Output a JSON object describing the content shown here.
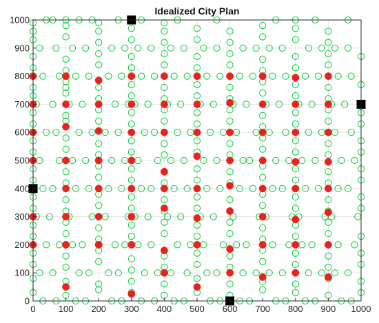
{
  "chart_data": {
    "type": "scatter",
    "title": "Idealized City Plan",
    "xlabel": "",
    "ylabel": "",
    "xlim": [
      0,
      1000
    ],
    "ylim": [
      0,
      1000
    ],
    "xticks": [
      "0",
      "100",
      "200",
      "300",
      "400",
      "500",
      "600",
      "700",
      "800",
      "900",
      "1000"
    ],
    "yticks": [
      "0",
      "100",
      "200",
      "300",
      "400",
      "500",
      "600",
      "700",
      "800",
      "900",
      "1000"
    ],
    "grid": true,
    "colors": {
      "households": "#00cc33",
      "services": "#e8231e",
      "gates": "#000000"
    },
    "series": [
      {
        "marker": "open-circle",
        "x": [
          0,
          0,
          0,
          0,
          0,
          0,
          0,
          0,
          0,
          0,
          0,
          0,
          0,
          0,
          0,
          0,
          0,
          0,
          0,
          0,
          0,
          100,
          100,
          100,
          100,
          100,
          100,
          100,
          100,
          100,
          100,
          100,
          100,
          100,
          100,
          100,
          100,
          100,
          100,
          100,
          100,
          100,
          100,
          200,
          200,
          200,
          200,
          200,
          200,
          200,
          200,
          200,
          200,
          200,
          200,
          200,
          200,
          200,
          200,
          200,
          200,
          200,
          200,
          200,
          300,
          300,
          300,
          300,
          300,
          300,
          300,
          300,
          300,
          300,
          300,
          300,
          300,
          300,
          300,
          300,
          300,
          300,
          300,
          300,
          400,
          400,
          400,
          400,
          400,
          400,
          400,
          400,
          400,
          400,
          400,
          400,
          400,
          400,
          400,
          400,
          400,
          400,
          400,
          400,
          400,
          500,
          500,
          500,
          500,
          500,
          500,
          500,
          500,
          500,
          500,
          500,
          500,
          500,
          500,
          500,
          500,
          500,
          500,
          500,
          500,
          600,
          600,
          600,
          600,
          600,
          600,
          600,
          600,
          600,
          600,
          600,
          600,
          600,
          600,
          600,
          600,
          600,
          600,
          600,
          600,
          700,
          700,
          700,
          700,
          700,
          700,
          700,
          700,
          700,
          700,
          700,
          700,
          700,
          700,
          700,
          700,
          700,
          700,
          700,
          700,
          800,
          800,
          800,
          800,
          800,
          800,
          800,
          800,
          800,
          800,
          800,
          800,
          800,
          800,
          800,
          800,
          800,
          800,
          800,
          800,
          800,
          900,
          900,
          900,
          900,
          900,
          900,
          900,
          900,
          900,
          900,
          900,
          900,
          900,
          900,
          900,
          900,
          900,
          900,
          900,
          900,
          1000,
          1000,
          1000,
          1000,
          1000,
          1000,
          1000,
          1000,
          1000,
          1000,
          1000,
          1000,
          1000,
          1000,
          1000,
          30,
          70,
          130,
          160,
          240,
          270,
          330,
          370,
          430,
          460,
          540,
          570,
          630,
          660,
          740,
          770,
          830,
          860,
          940,
          970,
          20,
          60,
          140,
          170,
          230,
          260,
          340,
          380,
          420,
          470,
          530,
          560,
          640,
          680,
          720,
          760,
          840,
          880,
          920,
          960,
          40,
          80,
          120,
          150,
          250,
          280,
          320,
          360,
          440,
          480,
          520,
          580,
          620,
          650,
          730,
          780,
          820,
          850,
          930,
          980,
          10,
          50,
          110,
          180,
          220,
          290,
          310,
          350,
          410,
          450,
          510,
          550,
          610,
          690,
          710,
          790,
          810,
          890,
          910,
          990,
          30,
          60,
          130,
          170,
          230,
          270,
          330,
          360,
          430,
          470,
          530,
          570,
          630,
          670,
          730,
          760,
          830,
          870,
          930,
          960,
          20,
          80,
          120,
          160,
          240,
          280,
          320,
          380,
          420,
          460,
          520,
          560,
          640,
          660,
          740,
          780,
          820,
          860,
          940,
          980,
          40,
          70,
          140,
          180,
          220,
          260,
          340,
          370,
          440,
          480,
          540,
          580,
          620,
          680,
          720,
          770,
          840,
          880,
          920,
          970,
          10,
          60,
          110,
          150,
          250,
          290,
          310,
          350,
          410,
          450,
          510,
          550,
          610,
          650,
          710,
          750,
          810,
          850,
          910,
          950,
          30,
          80,
          130,
          170,
          230,
          270,
          330,
          370,
          430,
          470,
          530,
          570,
          630,
          670,
          730,
          770,
          830,
          870,
          930,
          970,
          20,
          70,
          120,
          160,
          240,
          280,
          320,
          360,
          420,
          460,
          520,
          560,
          640,
          680,
          720,
          760,
          840,
          880,
          920,
          960,
          40,
          60,
          140,
          180,
          260,
          330,
          440,
          560,
          740,
          860,
          960
        ],
        "y": [
          30,
          80,
          130,
          170,
          230,
          270,
          330,
          370,
          430,
          470,
          530,
          570,
          630,
          670,
          730,
          760,
          830,
          870,
          930,
          960,
          990,
          20,
          70,
          120,
          160,
          240,
          280,
          320,
          360,
          420,
          460,
          540,
          580,
          640,
          660,
          740,
          780,
          820,
          860,
          940,
          980,
          1000,
          760,
          40,
          60,
          140,
          180,
          220,
          260,
          340,
          380,
          440,
          480,
          520,
          560,
          640,
          680,
          720,
          760,
          840,
          880,
          920,
          960,
          990,
          30,
          70,
          110,
          150,
          230,
          270,
          330,
          370,
          430,
          470,
          530,
          570,
          630,
          670,
          730,
          770,
          830,
          870,
          930,
          970,
          20,
          60,
          120,
          160,
          240,
          280,
          320,
          360,
          420,
          460,
          520,
          560,
          640,
          680,
          720,
          760,
          840,
          880,
          920,
          960,
          990,
          30,
          80,
          130,
          170,
          230,
          270,
          330,
          370,
          430,
          470,
          530,
          570,
          630,
          670,
          730,
          770,
          830,
          870,
          930,
          970,
          20,
          60,
          120,
          160,
          240,
          280,
          320,
          360,
          420,
          460,
          520,
          560,
          640,
          680,
          720,
          760,
          840,
          880,
          920,
          960,
          40,
          70,
          140,
          180,
          220,
          260,
          340,
          380,
          440,
          480,
          540,
          580,
          620,
          660,
          740,
          780,
          820,
          860,
          940,
          980,
          30,
          60,
          130,
          170,
          230,
          270,
          330,
          370,
          430,
          470,
          530,
          570,
          630,
          670,
          730,
          770,
          830,
          870,
          930,
          970,
          1000,
          20,
          80,
          120,
          160,
          240,
          280,
          320,
          360,
          420,
          460,
          520,
          560,
          640,
          680,
          720,
          760,
          840,
          880,
          920,
          960,
          30,
          70,
          130,
          170,
          230,
          330,
          370,
          430,
          470,
          530,
          570,
          630,
          670,
          770,
          870,
          0,
          0,
          0,
          0,
          0,
          0,
          0,
          0,
          0,
          0,
          0,
          0,
          0,
          0,
          0,
          0,
          0,
          0,
          0,
          0,
          100,
          100,
          100,
          100,
          100,
          100,
          100,
          100,
          100,
          100,
          100,
          100,
          100,
          100,
          100,
          100,
          100,
          100,
          100,
          100,
          200,
          200,
          200,
          200,
          200,
          200,
          200,
          200,
          200,
          200,
          200,
          200,
          200,
          200,
          200,
          200,
          200,
          200,
          200,
          200,
          300,
          300,
          300,
          300,
          300,
          300,
          300,
          300,
          300,
          300,
          300,
          300,
          300,
          300,
          300,
          300,
          300,
          300,
          300,
          300,
          400,
          400,
          400,
          400,
          400,
          400,
          400,
          400,
          400,
          400,
          400,
          400,
          400,
          400,
          400,
          400,
          400,
          400,
          400,
          400,
          500,
          500,
          500,
          500,
          500,
          500,
          500,
          500,
          500,
          500,
          500,
          500,
          500,
          500,
          500,
          500,
          500,
          500,
          500,
          500,
          600,
          600,
          600,
          600,
          600,
          600,
          600,
          600,
          600,
          600,
          600,
          600,
          600,
          600,
          600,
          600,
          600,
          600,
          600,
          600,
          700,
          700,
          700,
          700,
          700,
          700,
          700,
          700,
          700,
          700,
          700,
          700,
          700,
          700,
          700,
          700,
          700,
          700,
          700,
          700,
          800,
          800,
          800,
          800,
          800,
          800,
          800,
          800,
          800,
          800,
          800,
          800,
          800,
          800,
          800,
          800,
          800,
          800,
          800,
          800,
          900,
          900,
          900,
          900,
          900,
          900,
          900,
          900,
          900,
          900,
          900,
          900,
          900,
          900,
          900,
          900,
          900,
          900,
          900,
          900,
          1000,
          1000,
          1000,
          1000,
          1000,
          1000,
          1000,
          1000,
          1000,
          1000,
          1000
        ]
      },
      {
        "marker": "filled-circle",
        "x": [
          100,
          300,
          500,
          700,
          900,
          600,
          400,
          800,
          200,
          0,
          100,
          200,
          300,
          400,
          500,
          600,
          700,
          800,
          900,
          0,
          100,
          200,
          300,
          400,
          500,
          600,
          700,
          800,
          900,
          0,
          100,
          200,
          300,
          400,
          500,
          600,
          700,
          800,
          900,
          0,
          100,
          200,
          300,
          400,
          500,
          600,
          700,
          800,
          900,
          0,
          100,
          200,
          300,
          400,
          500,
          600,
          700,
          800,
          900,
          0,
          100,
          200,
          300,
          400,
          500,
          600,
          700,
          800,
          900,
          0,
          100,
          200,
          300,
          400,
          500,
          600,
          700,
          800,
          900
        ],
        "y": [
          50,
          25,
          50,
          85,
          85,
          100,
          100,
          100,
          200,
          200,
          200,
          200,
          200,
          180,
          200,
          185,
          200,
          200,
          200,
          300,
          300,
          300,
          300,
          330,
          295,
          320,
          300,
          290,
          315,
          400,
          400,
          400,
          400,
          400,
          400,
          410,
          400,
          400,
          400,
          500,
          500,
          500,
          500,
          460,
          515,
          500,
          500,
          495,
          495,
          600,
          620,
          605,
          600,
          600,
          600,
          600,
          600,
          600,
          600,
          700,
          700,
          700,
          700,
          700,
          700,
          705,
          700,
          700,
          700,
          800,
          800,
          785,
          800,
          800,
          800,
          800,
          800,
          795,
          800
        ],
        "labels_hidden": true
      },
      {
        "marker": "filled-square",
        "x": [
          300,
          1000,
          0,
          600
        ],
        "y": [
          1000,
          700,
          400,
          0
        ]
      }
    ]
  }
}
